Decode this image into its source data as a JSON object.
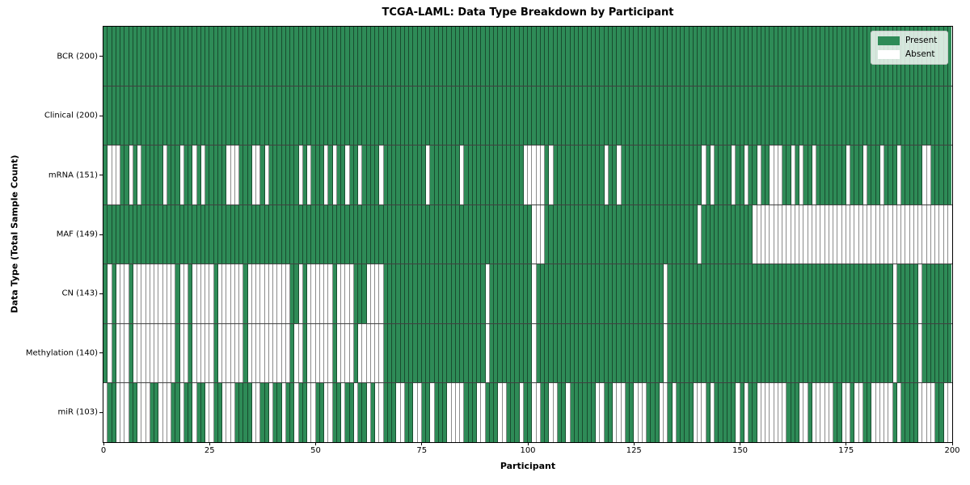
{
  "chart_data": {
    "type": "heatmap",
    "title": "TCGA-LAML: Data Type Breakdown by Participant",
    "xlabel": "Participant",
    "ylabel": "Data Type (Total Sample Count)",
    "x_ticks": [
      0,
      25,
      50,
      75,
      100,
      125,
      150,
      175,
      200
    ],
    "x_range": [
      0,
      200
    ],
    "n_participants": 200,
    "grid": "cell-edges",
    "legend": {
      "position": "upper right",
      "entries": [
        {
          "label": "Present",
          "color": "#2e8b57"
        },
        {
          "label": "Absent",
          "color": "#ffffff"
        }
      ]
    },
    "colors": {
      "present": "#2e8b57",
      "absent": "#ffffff",
      "cell_edge": "rgba(0,0,0,0.45)",
      "row_divider": "rgba(0,0,0,0.75)",
      "plot_border": "#000000"
    },
    "rows": [
      {
        "label": "BCR (200)",
        "present_count": 200,
        "pattern": "11111111111111111111111111111111111111111111111111111111111111111111111111111111111111111111111111111111111111111111111111111111111111111111111111111111111111111111111111111111111111111111111111111111"
      },
      {
        "label": "Clinical (200)",
        "present_count": 200,
        "pattern": "11111111111111111111111111111111111111111111111111111111111111111111111111111111111111111111111111111111111111111111111111111111111111111111111111111111111111111111111111111111111111111111111111111111"
      },
      {
        "label": "mRNA (151)",
        "present_count": 151,
        "pattern": "10001101011111011101101011111000111001011111110101110101101101111011111111110111111101111111111111100000101111111111110110111111111111111111101011110110110110001101011011111110111011101110111110011111"
      },
      {
        "label": "MAF (149)",
        "present_count": 149,
        "pattern": "11111111111111111111111111111111111111111111111111111111111111111111111111111111111111111111111111111000111111111111111111111111111111111111011111111111100000000000000000000000000000000000000000000000"
      },
      {
        "label": "CN (143)",
        "present_count": 143,
        "pattern": "10100010000000000100100000100000010000000000110100000010000111000011111111111111111111111101111111111011111111111111111111111111111101111111111111111111111111111111111111111111111111111101111101111111"
      },
      {
        "label": "Methylation (140)",
        "present_count": 140,
        "pattern": "10100010000000000100100000100000010000000000100100000010000100000011111111111111111111111101111111111011111111111111111111111111111101111111111111111111111111111111111111111111111111111101111101111111"
      },
      {
        "label": "miR (103)",
        "present_count": 103,
        "pattern": "01100011000110001101101100110001111001101101101100110011011011010011100110011011100001110011100111011001100110111111001100011000111001011110001011111010110000000111001000001100100110000010111100001100"
      }
    ]
  }
}
